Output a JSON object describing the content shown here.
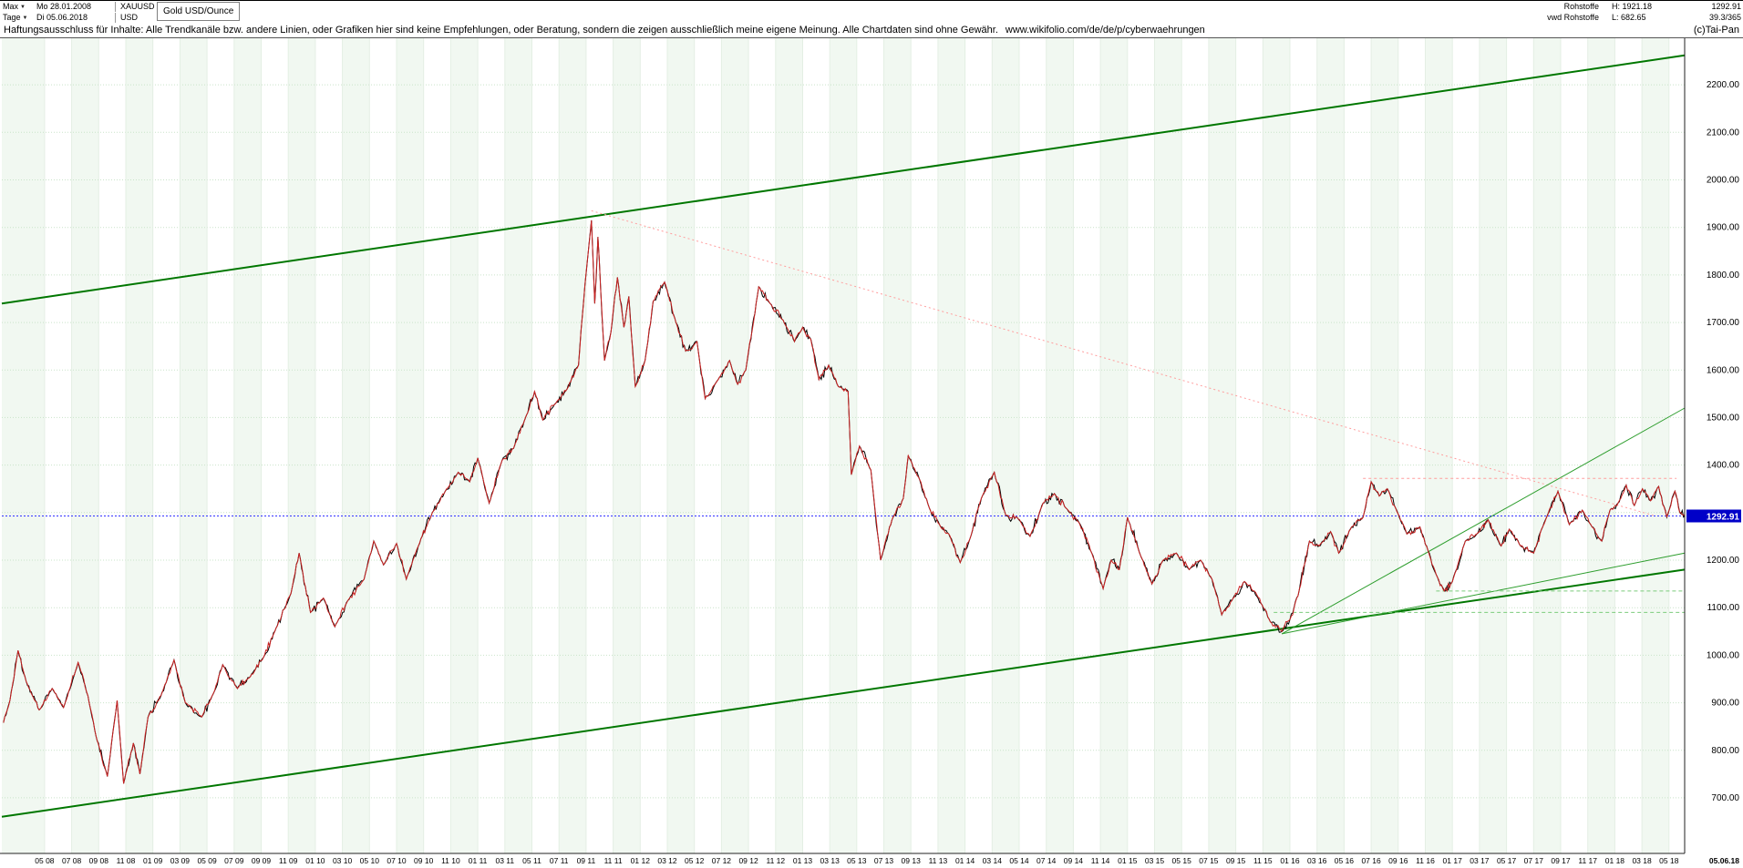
{
  "icons": {
    "dropdown_arrow": "▼"
  },
  "header": {
    "range_dropdown": "Max",
    "start_date": "Mo 28.01.2008",
    "symbol": "XAUUSD",
    "instrument": "Gold USD/Ounce",
    "period_dropdown": "Tage",
    "end_date": "Di 05.06.2018",
    "currency": "USD",
    "right": {
      "line1_label": "Rohstoffe",
      "line1_high": "H: 1921.18",
      "line1_last": "1292.91",
      "line2_label": "vwd Rohstoffe",
      "line2_low": "L: 682.65",
      "line2_value": "39.3/365",
      "copyright": "(c)Tai-Pan"
    }
  },
  "disclaimer": {
    "text": "Haftungsausschluss für Inhalte: Alle Trendkanäle bzw. andere Linien, oder Grafiken hier sind keine Empfehlungen, oder Beratung, sondern die zeigen ausschließlich meine eigene Meinung. Alle Chartdaten sind ohne Gewähr.",
    "link": "www.wikifolio.com/de/de/p/cyberwaehrungen"
  },
  "chart_data": {
    "type": "line",
    "title": "Gold USD/Ounce",
    "symbol": "XAUUSD",
    "currency": "USD",
    "period_high": 1921.18,
    "period_low": 682.65,
    "last_price": 1292.91,
    "x_unit": "decimal_year",
    "x_range": [
      2008.07,
      2018.43
    ],
    "ylim": [
      583,
      2298
    ],
    "y_grid_range": [
      700,
      2200
    ],
    "y_grid_step": 100,
    "y_label_skip": 1300,
    "x_axis_end_label": "05.06.18",
    "x_tick_labels": [
      "05 08",
      "07 08",
      "09 08",
      "11 08",
      "01 09",
      "03 09",
      "05 09",
      "07 09",
      "09 09",
      "11 09",
      "01 10",
      "03 10",
      "05 10",
      "07 10",
      "09 10",
      "11 10",
      "01 11",
      "03 11",
      "05 11",
      "07 11",
      "09 11",
      "11 11",
      "01 12",
      "03 12",
      "05 12",
      "07 12",
      "09 12",
      "11 12",
      "01 13",
      "03 13",
      "05 13",
      "07 13",
      "09 13",
      "11 13",
      "01 14",
      "03 14",
      "05 14",
      "07 14",
      "09 14",
      "11 14",
      "01 15",
      "03 15",
      "05 15",
      "07 15",
      "09 15",
      "11 15",
      "01 16",
      "03 16",
      "05 16",
      "07 16",
      "09 16",
      "11 16",
      "01 17",
      "03 17",
      "05 17",
      "07 17",
      "09 17",
      "11 17",
      "01 18",
      "03 18",
      "05 18"
    ],
    "grid": {
      "h_color": "#c9e4c9",
      "v_color": "#e4efe4",
      "stripe_color": "#f1f8f1"
    },
    "noise": {
      "amplitude": 12,
      "seed_black": 13,
      "seed_red": 57,
      "step": 0.008
    },
    "series": [
      {
        "name": "XAUUSD daily price",
        "color": "#000000",
        "overlay_color": "#cc2222",
        "points": [
          [
            2008.08,
            858
          ],
          [
            2008.12,
            905
          ],
          [
            2008.17,
            1010
          ],
          [
            2008.22,
            945
          ],
          [
            2008.3,
            885
          ],
          [
            2008.38,
            930
          ],
          [
            2008.45,
            890
          ],
          [
            2008.54,
            985
          ],
          [
            2008.6,
            915
          ],
          [
            2008.65,
            830
          ],
          [
            2008.72,
            745
          ],
          [
            2008.78,
            905
          ],
          [
            2008.82,
            730
          ],
          [
            2008.88,
            815
          ],
          [
            2008.92,
            750
          ],
          [
            2008.97,
            870
          ],
          [
            2009.05,
            915
          ],
          [
            2009.13,
            990
          ],
          [
            2009.2,
            900
          ],
          [
            2009.3,
            870
          ],
          [
            2009.38,
            925
          ],
          [
            2009.43,
            980
          ],
          [
            2009.52,
            930
          ],
          [
            2009.6,
            955
          ],
          [
            2009.68,
            995
          ],
          [
            2009.75,
            1050
          ],
          [
            2009.85,
            1130
          ],
          [
            2009.9,
            1215
          ],
          [
            2009.97,
            1090
          ],
          [
            2010.05,
            1120
          ],
          [
            2010.12,
            1060
          ],
          [
            2010.2,
            1115
          ],
          [
            2010.3,
            1160
          ],
          [
            2010.36,
            1240
          ],
          [
            2010.42,
            1190
          ],
          [
            2010.5,
            1235
          ],
          [
            2010.56,
            1160
          ],
          [
            2010.65,
            1245
          ],
          [
            2010.72,
            1300
          ],
          [
            2010.8,
            1345
          ],
          [
            2010.88,
            1385
          ],
          [
            2010.95,
            1365
          ],
          [
            2011.0,
            1415
          ],
          [
            2011.07,
            1320
          ],
          [
            2011.15,
            1410
          ],
          [
            2011.22,
            1435
          ],
          [
            2011.3,
            1505
          ],
          [
            2011.35,
            1555
          ],
          [
            2011.4,
            1495
          ],
          [
            2011.48,
            1530
          ],
          [
            2011.55,
            1560
          ],
          [
            2011.62,
            1610
          ],
          [
            2011.66,
            1780
          ],
          [
            2011.7,
            1915
          ],
          [
            2011.72,
            1740
          ],
          [
            2011.74,
            1880
          ],
          [
            2011.78,
            1620
          ],
          [
            2011.82,
            1680
          ],
          [
            2011.86,
            1795
          ],
          [
            2011.9,
            1690
          ],
          [
            2011.93,
            1755
          ],
          [
            2011.97,
            1565
          ],
          [
            2012.03,
            1620
          ],
          [
            2012.08,
            1745
          ],
          [
            2012.15,
            1785
          ],
          [
            2012.22,
            1700
          ],
          [
            2012.28,
            1640
          ],
          [
            2012.35,
            1660
          ],
          [
            2012.4,
            1540
          ],
          [
            2012.48,
            1580
          ],
          [
            2012.55,
            1620
          ],
          [
            2012.6,
            1570
          ],
          [
            2012.65,
            1600
          ],
          [
            2012.73,
            1775
          ],
          [
            2012.8,
            1740
          ],
          [
            2012.88,
            1705
          ],
          [
            2012.95,
            1660
          ],
          [
            2013.0,
            1690
          ],
          [
            2013.05,
            1665
          ],
          [
            2013.1,
            1580
          ],
          [
            2013.16,
            1610
          ],
          [
            2013.22,
            1565
          ],
          [
            2013.28,
            1555
          ],
          [
            2013.3,
            1380
          ],
          [
            2013.35,
            1440
          ],
          [
            2013.42,
            1390
          ],
          [
            2013.48,
            1200
          ],
          [
            2013.55,
            1285
          ],
          [
            2013.62,
            1330
          ],
          [
            2013.65,
            1420
          ],
          [
            2013.72,
            1370
          ],
          [
            2013.78,
            1310
          ],
          [
            2013.85,
            1270
          ],
          [
            2013.9,
            1255
          ],
          [
            2013.97,
            1195
          ],
          [
            2014.03,
            1245
          ],
          [
            2014.1,
            1330
          ],
          [
            2014.18,
            1385
          ],
          [
            2014.25,
            1295
          ],
          [
            2014.32,
            1290
          ],
          [
            2014.4,
            1250
          ],
          [
            2014.48,
            1320
          ],
          [
            2014.55,
            1340
          ],
          [
            2014.62,
            1310
          ],
          [
            2014.7,
            1280
          ],
          [
            2014.78,
            1215
          ],
          [
            2014.85,
            1140
          ],
          [
            2014.9,
            1200
          ],
          [
            2014.95,
            1180
          ],
          [
            2015.0,
            1290
          ],
          [
            2015.08,
            1210
          ],
          [
            2015.15,
            1150
          ],
          [
            2015.22,
            1200
          ],
          [
            2015.3,
            1215
          ],
          [
            2015.38,
            1180
          ],
          [
            2015.45,
            1200
          ],
          [
            2015.52,
            1160
          ],
          [
            2015.58,
            1085
          ],
          [
            2015.65,
            1120
          ],
          [
            2015.72,
            1155
          ],
          [
            2015.78,
            1135
          ],
          [
            2015.83,
            1105
          ],
          [
            2015.88,
            1070
          ],
          [
            2015.95,
            1050
          ],
          [
            2016.0,
            1075
          ],
          [
            2016.05,
            1125
          ],
          [
            2016.12,
            1240
          ],
          [
            2016.18,
            1230
          ],
          [
            2016.25,
            1260
          ],
          [
            2016.3,
            1215
          ],
          [
            2016.38,
            1270
          ],
          [
            2016.45,
            1290
          ],
          [
            2016.5,
            1365
          ],
          [
            2016.55,
            1335
          ],
          [
            2016.6,
            1350
          ],
          [
            2016.65,
            1310
          ],
          [
            2016.72,
            1255
          ],
          [
            2016.8,
            1270
          ],
          [
            2016.85,
            1220
          ],
          [
            2016.9,
            1170
          ],
          [
            2016.95,
            1135
          ],
          [
            2017.0,
            1155
          ],
          [
            2017.08,
            1240
          ],
          [
            2017.15,
            1255
          ],
          [
            2017.22,
            1285
          ],
          [
            2017.3,
            1230
          ],
          [
            2017.35,
            1265
          ],
          [
            2017.42,
            1230
          ],
          [
            2017.5,
            1215
          ],
          [
            2017.58,
            1290
          ],
          [
            2017.65,
            1345
          ],
          [
            2017.72,
            1275
          ],
          [
            2017.8,
            1305
          ],
          [
            2017.86,
            1270
          ],
          [
            2017.92,
            1240
          ],
          [
            2017.97,
            1305
          ],
          [
            2018.02,
            1320
          ],
          [
            2018.07,
            1358
          ],
          [
            2018.12,
            1315
          ],
          [
            2018.17,
            1350
          ],
          [
            2018.22,
            1325
          ],
          [
            2018.27,
            1355
          ],
          [
            2018.32,
            1290
          ],
          [
            2018.37,
            1345
          ],
          [
            2018.4,
            1300
          ],
          [
            2018.43,
            1293
          ]
        ]
      }
    ],
    "trendlines": [
      {
        "name": "channel-lower",
        "x1": 2008.07,
        "y1": 660,
        "x2": 2018.43,
        "y2": 1180,
        "color": "#007700",
        "width": 2
      },
      {
        "name": "channel-upper",
        "x1": 2008.07,
        "y1": 1740,
        "x2": 2018.43,
        "y2": 2262,
        "color": "#007700",
        "width": 2
      },
      {
        "name": "downtrend-from-2011-top",
        "x1": 2011.7,
        "y1": 1935,
        "x2": 2018.25,
        "y2": 1293,
        "color": "#ff9e9e",
        "width": 1,
        "dash": "2,3"
      },
      {
        "name": "fan-line-steep",
        "x1": 2015.95,
        "y1": 1045,
        "x2": 2018.43,
        "y2": 1520,
        "color": "#2e9e2e",
        "width": 1
      },
      {
        "name": "fan-line-shallow",
        "x1": 2015.95,
        "y1": 1045,
        "x2": 2018.43,
        "y2": 1215,
        "color": "#2e9e2e",
        "width": 1
      },
      {
        "name": "resistance-horizontal",
        "x1": 2016.45,
        "y1": 1372,
        "x2": 2018.38,
        "y2": 1372,
        "color": "#ff9e9e",
        "width": 1,
        "dash": "3,3"
      },
      {
        "name": "support-horizontal-1",
        "x1": 2016.9,
        "y1": 1135,
        "x2": 2018.43,
        "y2": 1135,
        "color": "#7ccc7c",
        "width": 1,
        "dash": "4,3"
      },
      {
        "name": "support-horizontal-2",
        "x1": 2015.9,
        "y1": 1090,
        "x2": 2018.43,
        "y2": 1090,
        "color": "#7ccc7c",
        "width": 1,
        "dash": "4,3"
      }
    ],
    "current_price_line": {
      "price": 1292.91,
      "color": "#3333ff",
      "badge_bg": "#0000c8",
      "badge_text": "1292.91"
    }
  }
}
